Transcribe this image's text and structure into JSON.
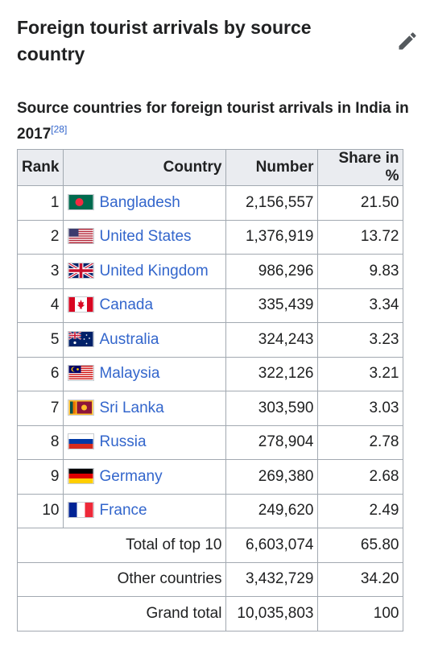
{
  "section": {
    "title": "Foreign tourist arrivals by source country",
    "edit_icon": "pencil-icon"
  },
  "caption": {
    "text": "Source countries for foreign tourist arrivals in India in 2017",
    "ref": "[28]"
  },
  "table": {
    "headers": {
      "rank": "Rank",
      "country": "Country",
      "number": "Number",
      "share": "Share in %"
    },
    "rows": [
      {
        "rank": "1",
        "country": "Bangladesh",
        "flag": "bangladesh-flag-icon",
        "number": "2,156,557",
        "share": "21.50"
      },
      {
        "rank": "2",
        "country": "United States",
        "flag": "usa-flag-icon",
        "number": "1,376,919",
        "share": "13.72"
      },
      {
        "rank": "3",
        "country": "United Kingdom",
        "flag": "uk-flag-icon",
        "number": "986,296",
        "share": "9.83"
      },
      {
        "rank": "4",
        "country": "Canada",
        "flag": "canada-flag-icon",
        "number": "335,439",
        "share": "3.34"
      },
      {
        "rank": "5",
        "country": "Australia",
        "flag": "australia-flag-icon",
        "number": "324,243",
        "share": "3.23"
      },
      {
        "rank": "6",
        "country": "Malaysia",
        "flag": "malaysia-flag-icon",
        "number": "322,126",
        "share": "3.21"
      },
      {
        "rank": "7",
        "country": "Sri Lanka",
        "flag": "sri-lanka-flag-icon",
        "number": "303,590",
        "share": "3.03"
      },
      {
        "rank": "8",
        "country": "Russia",
        "flag": "russia-flag-icon",
        "number": "278,904",
        "share": "2.78"
      },
      {
        "rank": "9",
        "country": "Germany",
        "flag": "germany-flag-icon",
        "number": "269,380",
        "share": "2.68"
      },
      {
        "rank": "10",
        "country": "France",
        "flag": "france-flag-icon",
        "number": "249,620",
        "share": "2.49"
      }
    ],
    "totals": [
      {
        "label": "Total of top 10",
        "number": "6,603,074",
        "share": "65.80"
      },
      {
        "label": "Other countries",
        "number": "3,432,729",
        "share": "34.20"
      },
      {
        "label": "Grand total",
        "number": "10,035,803",
        "share": "100"
      }
    ]
  },
  "colors": {
    "link": "#3366cc",
    "header_bg": "#eaecf0",
    "border": "#a2a9b1",
    "text": "#202122"
  }
}
